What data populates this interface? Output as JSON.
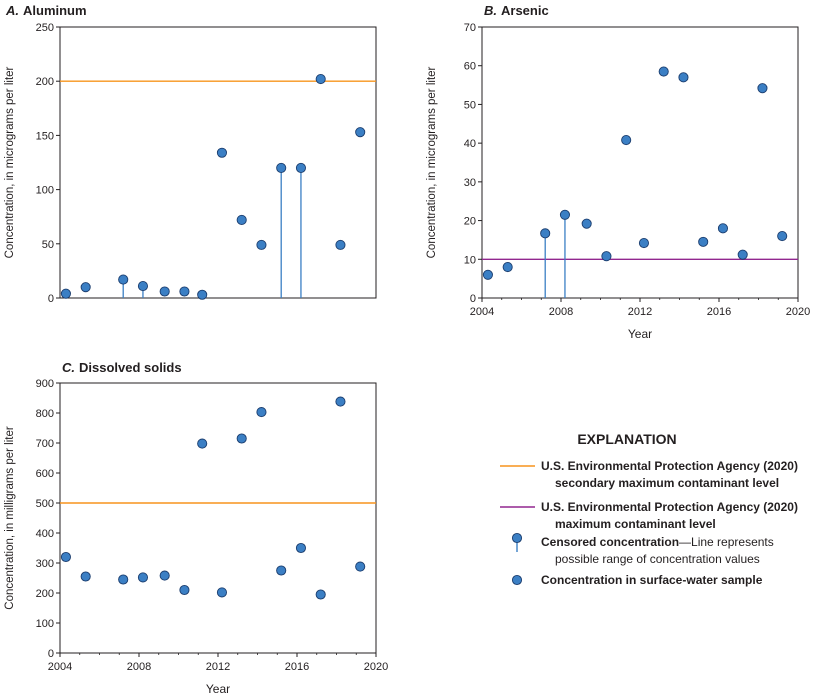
{
  "chart_data": [
    {
      "type": "scatter",
      "panel": "A.",
      "title": "Aluminum",
      "ylabel": "Concentration, in micrograms per liter",
      "xlabel": "",
      "xlim": [
        2004,
        2020
      ],
      "ylim": [
        0,
        250
      ],
      "yticks": [
        0,
        50,
        100,
        150,
        200,
        250
      ],
      "xticks": [],
      "reference_line": {
        "name": "U.S. Environmental Protection Agency (2020) secondary maximum contaminant level",
        "value": 200,
        "color": "#f7941d"
      },
      "points": [
        {
          "x": 2004.3,
          "y": 4,
          "censored": false
        },
        {
          "x": 2005.3,
          "y": 10,
          "censored": false
        },
        {
          "x": 2007.2,
          "y": 17,
          "censored": true
        },
        {
          "x": 2008.2,
          "y": 11,
          "censored": true
        },
        {
          "x": 2009.3,
          "y": 6,
          "censored": false
        },
        {
          "x": 2010.3,
          "y": 6,
          "censored": false
        },
        {
          "x": 2011.2,
          "y": 3,
          "censored": false
        },
        {
          "x": 2012.2,
          "y": 134,
          "censored": false
        },
        {
          "x": 2013.2,
          "y": 72,
          "censored": false
        },
        {
          "x": 2014.2,
          "y": 49,
          "censored": false
        },
        {
          "x": 2015.2,
          "y": 120,
          "censored": true
        },
        {
          "x": 2016.2,
          "y": 120,
          "censored": true
        },
        {
          "x": 2017.2,
          "y": 202,
          "censored": false
        },
        {
          "x": 2018.2,
          "y": 49,
          "censored": false
        },
        {
          "x": 2019.2,
          "y": 153,
          "censored": false
        }
      ]
    },
    {
      "type": "scatter",
      "panel": "B.",
      "title": "Arsenic",
      "ylabel": "Concentration, in micrograms per liter",
      "xlabel": "Year",
      "xlim": [
        2004,
        2020
      ],
      "ylim": [
        0,
        70
      ],
      "yticks": [
        0,
        10,
        20,
        30,
        40,
        50,
        60,
        70
      ],
      "xticks": [
        2004,
        2008,
        2012,
        2016,
        2020
      ],
      "reference_line": {
        "name": "U.S. Environmental Protection Agency (2020) maximum contaminant level",
        "value": 10,
        "color": "#92278f"
      },
      "points": [
        {
          "x": 2004.3,
          "y": 6,
          "censored": false
        },
        {
          "x": 2005.3,
          "y": 8,
          "censored": false
        },
        {
          "x": 2007.2,
          "y": 16.7,
          "censored": true
        },
        {
          "x": 2008.2,
          "y": 21.5,
          "censored": true
        },
        {
          "x": 2009.3,
          "y": 19.2,
          "censored": false
        },
        {
          "x": 2010.3,
          "y": 10.8,
          "censored": false
        },
        {
          "x": 2011.3,
          "y": 40.8,
          "censored": false
        },
        {
          "x": 2012.2,
          "y": 14.2,
          "censored": false
        },
        {
          "x": 2013.2,
          "y": 58.5,
          "censored": false
        },
        {
          "x": 2014.2,
          "y": 57,
          "censored": false
        },
        {
          "x": 2015.2,
          "y": 14.5,
          "censored": false
        },
        {
          "x": 2016.2,
          "y": 18,
          "censored": false
        },
        {
          "x": 2017.2,
          "y": 11.2,
          "censored": false
        },
        {
          "x": 2018.2,
          "y": 54.2,
          "censored": false
        },
        {
          "x": 2019.2,
          "y": 16,
          "censored": false
        }
      ]
    },
    {
      "type": "scatter",
      "panel": "C.",
      "title": "Dissolved solids",
      "ylabel": "Concentration, in milligrams per liter",
      "xlabel": "Year",
      "xlim": [
        2004,
        2020
      ],
      "ylim": [
        0,
        900
      ],
      "yticks": [
        0,
        100,
        200,
        300,
        400,
        500,
        600,
        700,
        800,
        900
      ],
      "xticks": [
        2004,
        2008,
        2012,
        2016,
        2020
      ],
      "reference_line": {
        "name": "U.S. Environmental Protection Agency (2020) secondary maximum contaminant level",
        "value": 500,
        "color": "#f7941d"
      },
      "points": [
        {
          "x": 2004.3,
          "y": 320,
          "censored": false
        },
        {
          "x": 2005.3,
          "y": 255,
          "censored": false
        },
        {
          "x": 2007.2,
          "y": 245,
          "censored": false
        },
        {
          "x": 2008.2,
          "y": 252,
          "censored": false
        },
        {
          "x": 2009.3,
          "y": 258,
          "censored": false
        },
        {
          "x": 2010.3,
          "y": 210,
          "censored": false
        },
        {
          "x": 2011.2,
          "y": 698,
          "censored": false
        },
        {
          "x": 2012.2,
          "y": 202,
          "censored": false
        },
        {
          "x": 2013.2,
          "y": 715,
          "censored": false
        },
        {
          "x": 2014.2,
          "y": 803,
          "censored": false
        },
        {
          "x": 2015.2,
          "y": 275,
          "censored": false
        },
        {
          "x": 2016.2,
          "y": 350,
          "censored": false
        },
        {
          "x": 2017.2,
          "y": 195,
          "censored": false
        },
        {
          "x": 2018.2,
          "y": 838,
          "censored": false
        },
        {
          "x": 2019.2,
          "y": 288,
          "censored": false
        }
      ]
    }
  ],
  "colors": {
    "marker_fill": "#3b7fc4",
    "marker_stroke": "#1b3d6e",
    "orange_line": "#f7941d",
    "purple_line": "#92278f",
    "axis": "#231f20"
  },
  "legend": {
    "title": "EXPLANATION",
    "items": [
      {
        "kind": "orange-line",
        "text": "U.S. Environmental Protection Agency (2020)",
        "text2": "secondary maximum contaminant level"
      },
      {
        "kind": "purple-line",
        "text": "U.S. Environmental Protection Agency (2020)",
        "text2": "maximum contaminant level"
      },
      {
        "kind": "censored",
        "text": "Censored concentration",
        "note": "—Line represents",
        "text2": "possible range of concentration values"
      },
      {
        "kind": "dot",
        "text": "Concentration in surface-water sample"
      }
    ]
  }
}
